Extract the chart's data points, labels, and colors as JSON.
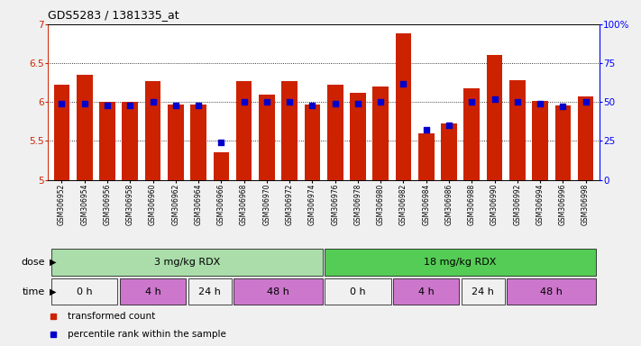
{
  "title": "GDS5283 / 1381335_at",
  "samples": [
    "GSM306952",
    "GSM306954",
    "GSM306956",
    "GSM306958",
    "GSM306960",
    "GSM306962",
    "GSM306964",
    "GSM306966",
    "GSM306968",
    "GSM306970",
    "GSM306972",
    "GSM306974",
    "GSM306976",
    "GSM306978",
    "GSM306980",
    "GSM306982",
    "GSM306984",
    "GSM306986",
    "GSM306988",
    "GSM306990",
    "GSM306992",
    "GSM306994",
    "GSM306996",
    "GSM306998"
  ],
  "transformed_count": [
    6.22,
    6.35,
    6.0,
    6.0,
    6.27,
    5.97,
    5.97,
    5.35,
    6.27,
    6.1,
    6.27,
    5.97,
    6.22,
    6.12,
    6.2,
    6.88,
    5.6,
    5.72,
    6.18,
    6.6,
    6.28,
    6.02,
    5.96,
    6.07
  ],
  "percentile_rank": [
    49,
    49,
    48,
    48,
    50,
    48,
    48,
    24,
    50,
    50,
    50,
    48,
    49,
    49,
    50,
    62,
    32,
    35,
    50,
    52,
    50,
    49,
    47,
    50
  ],
  "ylim_left": [
    5.0,
    7.0
  ],
  "ylim_right": [
    0,
    100
  ],
  "yticks_left": [
    5.0,
    5.5,
    6.0,
    6.5,
    7.0
  ],
  "yticks_right": [
    0,
    25,
    50,
    75,
    100
  ],
  "bar_color": "#cc2200",
  "dot_color": "#0000cc",
  "background_color": "#f0f0f0",
  "plot_bg_color": "#ffffff",
  "dose_groups": [
    {
      "text": "3 mg/kg RDX",
      "start": 0,
      "end": 11,
      "color": "#aaddaa"
    },
    {
      "text": "18 mg/kg RDX",
      "start": 12,
      "end": 23,
      "color": "#55cc55"
    }
  ],
  "time_groups": [
    {
      "text": "0 h",
      "start": 0,
      "end": 2,
      "color": "#f0f0f0"
    },
    {
      "text": "4 h",
      "start": 3,
      "end": 5,
      "color": "#cc77cc"
    },
    {
      "text": "24 h",
      "start": 6,
      "end": 7,
      "color": "#f0f0f0"
    },
    {
      "text": "48 h",
      "start": 8,
      "end": 11,
      "color": "#cc77cc"
    },
    {
      "text": "0 h",
      "start": 12,
      "end": 14,
      "color": "#f0f0f0"
    },
    {
      "text": "4 h",
      "start": 15,
      "end": 17,
      "color": "#cc77cc"
    },
    {
      "text": "24 h",
      "start": 18,
      "end": 19,
      "color": "#f0f0f0"
    },
    {
      "text": "48 h",
      "start": 20,
      "end": 23,
      "color": "#cc77cc"
    }
  ],
  "legend_items": [
    {
      "label": "transformed count",
      "color": "#cc2200"
    },
    {
      "label": "percentile rank within the sample",
      "color": "#0000cc"
    }
  ]
}
